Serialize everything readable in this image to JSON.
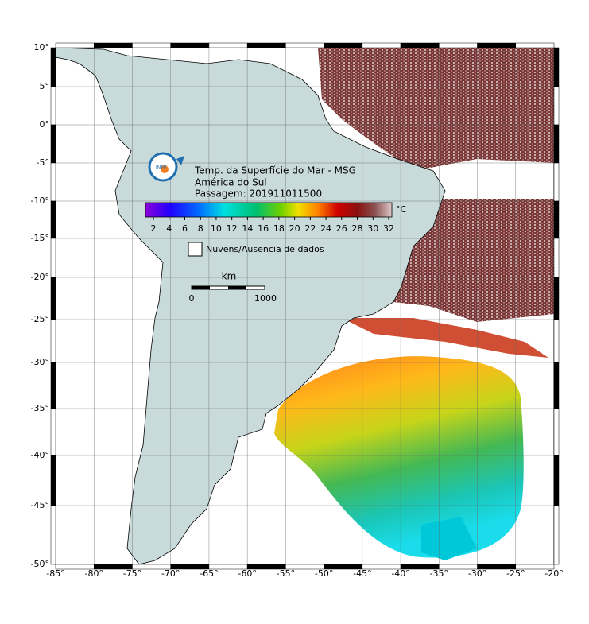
{
  "logo": {
    "text": "INPE"
  },
  "title": {
    "lines": [
      "Temp. da Superfície do Mar - MSG",
      "América do Sul",
      "Passagem: 201911011500"
    ]
  },
  "colorbar": {
    "ticks": [
      2,
      4,
      6,
      8,
      10,
      12,
      14,
      16,
      18,
      20,
      22,
      24,
      26,
      28,
      30,
      32
    ],
    "unit": "°C"
  },
  "legend": {
    "label": "Nuvens/Ausencia de dados"
  },
  "scale_bar": {
    "unit": "km",
    "start": 0,
    "end": 1000
  },
  "axes": {
    "x_labels": [
      "-85°",
      "-80°",
      "-75°",
      "-70°",
      "-65°",
      "-60°",
      "-55°",
      "-50°",
      "-45°",
      "-40°",
      "-35°",
      "-30°",
      "-25°",
      "-20°"
    ],
    "y_labels": [
      "10°",
      "5°",
      "0°",
      "-5°",
      "-10°",
      "-15°",
      "-20°",
      "-25°",
      "-30°",
      "-35°",
      "-40°",
      "-45°",
      "-50°"
    ]
  }
}
